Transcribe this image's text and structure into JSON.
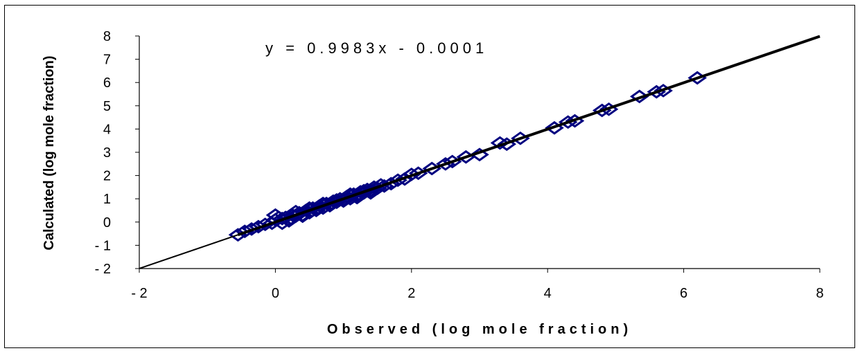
{
  "chart_data": {
    "type": "scatter",
    "xlabel": "Observed (log mole fraction)",
    "ylabel": "Calculated (log mole fraction)",
    "equation": "y = 0.9983x - 0.0001",
    "xlim": [
      -2,
      8
    ],
    "ylim": [
      -2,
      8
    ],
    "x_ticks": [
      "- 2",
      "0",
      "2",
      "4",
      "6",
      "8"
    ],
    "y_ticks": [
      "- 2",
      "- 1",
      "0",
      "1",
      "2",
      "3",
      "4",
      "5",
      "6",
      "7",
      "8"
    ],
    "grid": false,
    "marker_color": "#000080",
    "trendline": {
      "slope": 0.9983,
      "intercept": -0.0001,
      "color": "#000000"
    },
    "series": [
      {
        "x": [
          -0.55,
          -0.45,
          -0.35,
          -0.25,
          -0.15,
          -0.05,
          0.0,
          0.05,
          0.1,
          0.15,
          0.2,
          0.25,
          0.3,
          0.35,
          0.4,
          0.45,
          0.5,
          0.55,
          0.6,
          0.65,
          0.7,
          0.75,
          0.8,
          0.85,
          0.9,
          0.95,
          1.0,
          1.05,
          1.1,
          1.15,
          1.2,
          1.25,
          1.3,
          1.35,
          1.4,
          1.45,
          1.5,
          1.55,
          1.6,
          1.7,
          1.8,
          1.9,
          2.0,
          2.1,
          2.3,
          2.5,
          2.6,
          2.8,
          3.0,
          3.3,
          3.4,
          3.6,
          4.1,
          4.3,
          4.4,
          4.8,
          4.9,
          5.35,
          5.6,
          5.7,
          6.2,
          0.0,
          0.1,
          0.3,
          0.5,
          0.7,
          0.9,
          1.1,
          1.3,
          0.2,
          0.4,
          0.6,
          0.8,
          1.0,
          1.2,
          1.4
        ],
        "y": [
          -0.55,
          -0.4,
          -0.3,
          -0.2,
          -0.1,
          -0.05,
          0.1,
          0.2,
          -0.05,
          0.2,
          0.1,
          0.3,
          0.25,
          0.4,
          0.3,
          0.5,
          0.4,
          0.6,
          0.55,
          0.7,
          0.6,
          0.8,
          0.75,
          0.9,
          0.85,
          1.0,
          0.95,
          1.1,
          1.0,
          1.2,
          1.15,
          1.3,
          1.25,
          1.4,
          1.35,
          1.5,
          1.45,
          1.6,
          1.55,
          1.65,
          1.8,
          1.85,
          2.05,
          2.1,
          2.3,
          2.5,
          2.6,
          2.8,
          2.9,
          3.4,
          3.35,
          3.6,
          4.05,
          4.3,
          4.35,
          4.8,
          4.85,
          5.4,
          5.6,
          5.65,
          6.2,
          0.3,
          0.15,
          0.45,
          0.6,
          0.8,
          0.95,
          1.2,
          1.35,
          0.05,
          0.25,
          0.5,
          0.7,
          0.9,
          1.05,
          1.25
        ]
      }
    ]
  }
}
